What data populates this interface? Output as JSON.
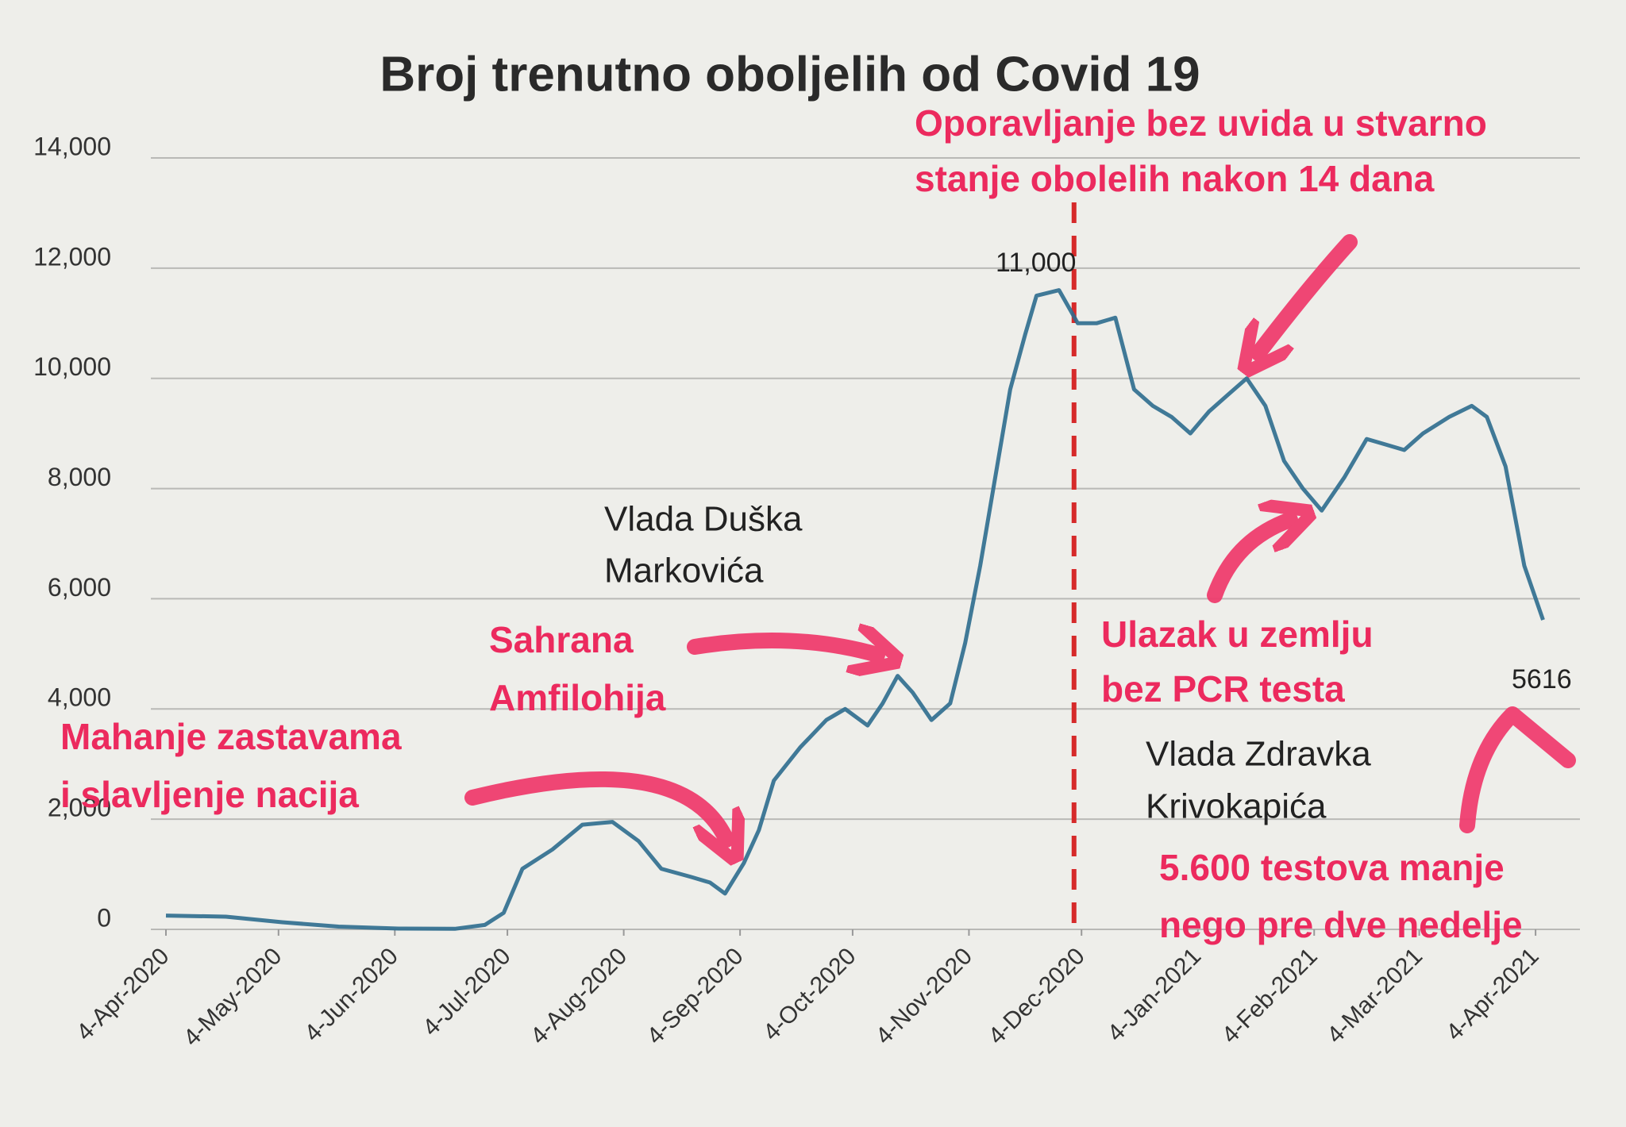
{
  "chart_data": {
    "type": "line",
    "title": "Broj trenutno oboljelih od Covid 19",
    "x": [
      "2020-04-04",
      "2020-04-20",
      "2020-05-05",
      "2020-05-20",
      "2020-06-05",
      "2020-06-20",
      "2020-06-28",
      "2020-07-03",
      "2020-07-08",
      "2020-07-16",
      "2020-07-24",
      "2020-08-01",
      "2020-08-08",
      "2020-08-14",
      "2020-08-22",
      "2020-08-27",
      "2020-08-31",
      "2020-09-05",
      "2020-09-09",
      "2020-09-13",
      "2020-09-20",
      "2020-09-27",
      "2020-10-02",
      "2020-10-08",
      "2020-10-12",
      "2020-10-16",
      "2020-10-20",
      "2020-10-25",
      "2020-10-30",
      "2020-11-03",
      "2020-11-07",
      "2020-11-11",
      "2020-11-15",
      "2020-11-19",
      "2020-11-22",
      "2020-11-28",
      "2020-12-03",
      "2020-12-08",
      "2020-12-13",
      "2020-12-18",
      "2020-12-23",
      "2020-12-28",
      "2021-01-02",
      "2021-01-07",
      "2021-01-12",
      "2021-01-17",
      "2021-01-22",
      "2021-01-27",
      "2021-02-01",
      "2021-02-06",
      "2021-02-12",
      "2021-02-18",
      "2021-02-23",
      "2021-02-28",
      "2021-03-05",
      "2021-03-12",
      "2021-03-18",
      "2021-03-22",
      "2021-03-27",
      "2021-04-01",
      "2021-04-06"
    ],
    "values": [
      250,
      230,
      130,
      50,
      15,
      10,
      80,
      300,
      1100,
      1450,
      1900,
      1950,
      1600,
      1100,
      950,
      850,
      650,
      1200,
      1800,
      2700,
      3300,
      3800,
      4000,
      3700,
      4100,
      4600,
      4300,
      3800,
      4100,
      5200,
      6600,
      8200,
      9800,
      10800,
      11500,
      11600,
      11000,
      11000,
      11100,
      9800,
      9500,
      9300,
      9000,
      9400,
      9700,
      10000,
      9500,
      8500,
      8000,
      7600,
      8200,
      8900,
      8800,
      8700,
      9000,
      9300,
      9500,
      9300,
      8400,
      6600,
      5616
    ],
    "color": "#2c6b8e",
    "xlim": [
      "2020-04-04",
      "2021-04-08"
    ],
    "xticks": [
      {
        "value": "2020-04-04",
        "label": "4-Apr-2020"
      },
      {
        "value": "2020-05-04",
        "label": "4-May-2020"
      },
      {
        "value": "2020-06-04",
        "label": "4-Jun-2020"
      },
      {
        "value": "2020-07-04",
        "label": "4-Jul-2020"
      },
      {
        "value": "2020-08-04",
        "label": "4-Aug-2020"
      },
      {
        "value": "2020-09-04",
        "label": "4-Sep-2020"
      },
      {
        "value": "2020-10-04",
        "label": "4-Oct-2020"
      },
      {
        "value": "2020-11-04",
        "label": "4-Nov-2020"
      },
      {
        "value": "2020-12-04",
        "label": "4-Dec-2020"
      },
      {
        "value": "2021-01-04",
        "label": "4-Jan-2021"
      },
      {
        "value": "2021-02-04",
        "label": "4-Feb-2021"
      },
      {
        "value": "2021-03-04",
        "label": "4-Mar-2021"
      },
      {
        "value": "2021-04-04",
        "label": "4-Apr-2021"
      }
    ],
    "ylim": [
      0,
      14000
    ],
    "yticks": [
      0,
      {
        "value": 2000,
        "label": "2,000"
      },
      {
        "value": 4000,
        "label": "4,000"
      },
      {
        "value": 6000,
        "label": "6,000"
      },
      {
        "value": 8000,
        "label": "8,000"
      },
      {
        "value": 10000,
        "label": "10,000"
      },
      {
        "value": 12000,
        "label": "12,000"
      },
      {
        "value": 14000,
        "label": "14,000"
      }
    ],
    "grid": true,
    "vline": {
      "x": "2020-12-02",
      "color": "#d62a2a"
    },
    "annotations": [
      {
        "lines": [
          "Oporavljanje bez uvida u stvarno",
          "stanje obolelih nakon 14 dana"
        ],
        "color": "#ec2a5e",
        "bold": true
      },
      {
        "lines": [
          "11,000"
        ],
        "color": "#222222",
        "bold": false
      },
      {
        "lines": [
          "Vlada Duška",
          "Markovića"
        ],
        "color": "#222222",
        "bold": false
      },
      {
        "lines": [
          "Sahrana",
          "Amfilohija"
        ],
        "color": "#ec2a5e",
        "bold": true
      },
      {
        "lines": [
          "Mahanje zastavama",
          "i slavljenje nacija"
        ],
        "color": "#ec2a5e",
        "bold": true
      },
      {
        "lines": [
          "Ulazak u zemlju",
          "bez PCR testa"
        ],
        "color": "#ec2a5e",
        "bold": true
      },
      {
        "lines": [
          "5616"
        ],
        "color": "#222222",
        "bold": false
      },
      {
        "lines": [
          "Vlada Zdravka",
          "Krivokapića"
        ],
        "color": "#222222",
        "bold": false
      },
      {
        "lines": [
          "5.600 testova manje",
          "nego pre dve nedelje"
        ],
        "color": "#ec2a5e",
        "bold": true
      }
    ]
  }
}
